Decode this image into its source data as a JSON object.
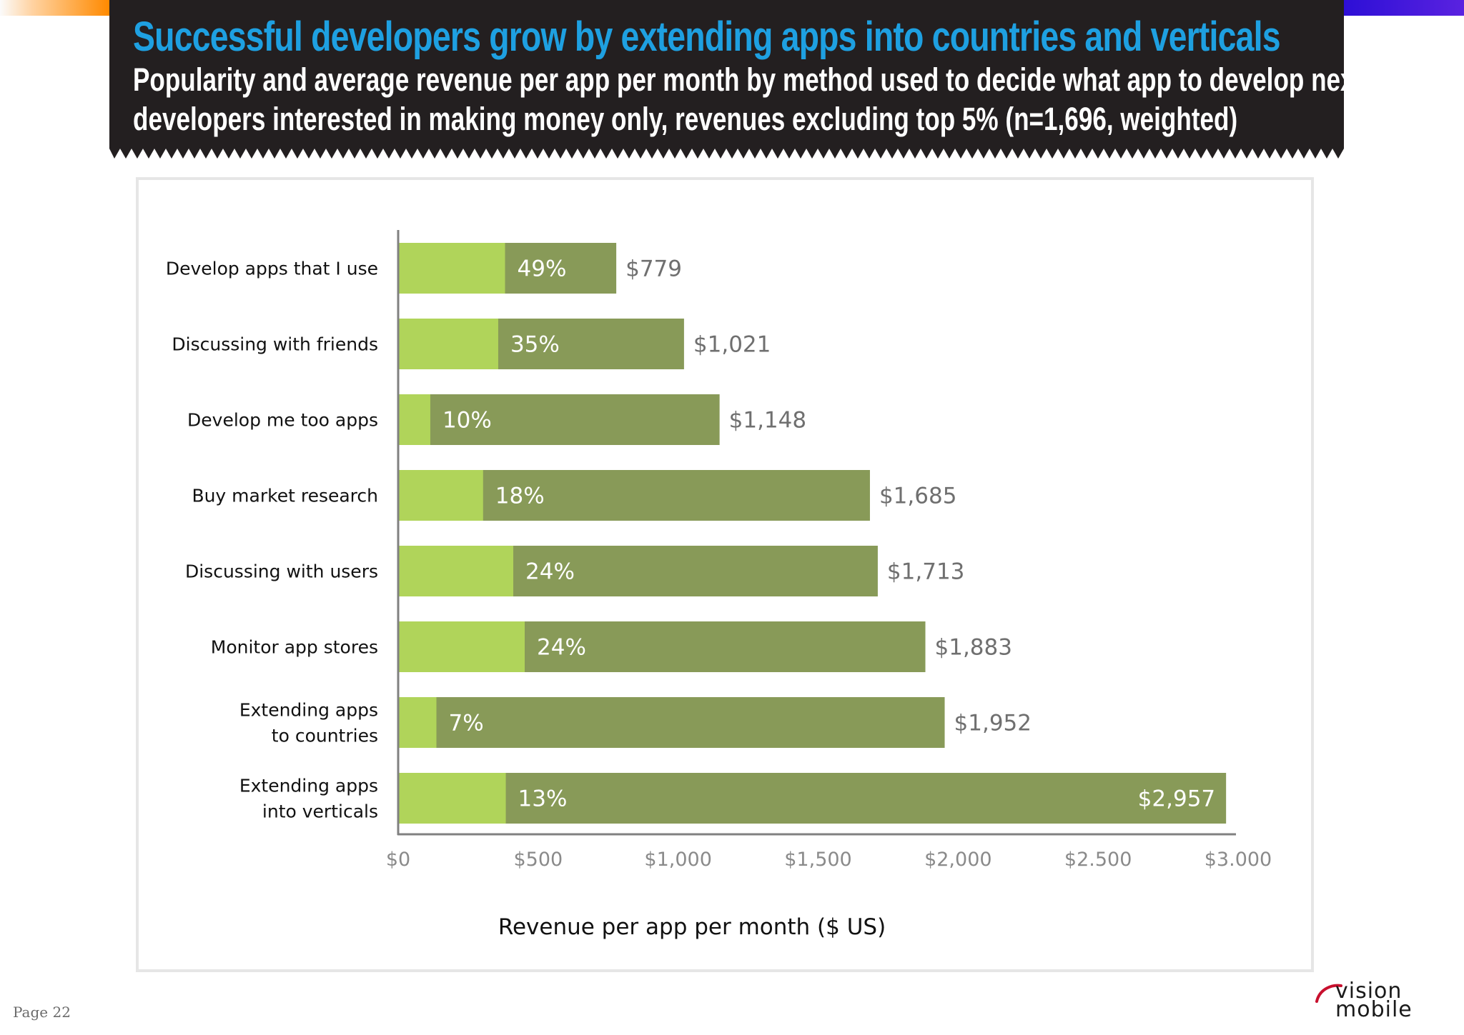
{
  "header": {
    "title": "Successful developers grow by extending apps into countries and verticals",
    "subtitle_line1": "Popularity and average revenue per app per month by method used to decide what app to develop next,",
    "subtitle_line2": "developers interested in making money only, revenues excluding top 5% (n=1,696, weighted)"
  },
  "colors": {
    "banner": "#231f20",
    "title": "#1ea0e1",
    "bar_popularity": "#b0d45a",
    "bar_revenue": "#889a58",
    "axis": "#808080",
    "tick_text": "#8a8a8a",
    "value_text": "#6f6f6f",
    "accent_left": "#ff8a00",
    "accent_right": "#3a14dc"
  },
  "chart_data": {
    "type": "bar",
    "orientation": "horizontal",
    "categories": [
      [
        "Develop apps that I use"
      ],
      [
        "Discussing with friends"
      ],
      [
        "Develop me too apps"
      ],
      [
        "Buy market research"
      ],
      [
        "Discussing with users"
      ],
      [
        "Monitor app stores"
      ],
      [
        "Extending apps",
        "to countries"
      ],
      [
        "Extending apps",
        "into verticals"
      ]
    ],
    "series": [
      {
        "values": [
          779,
          1021,
          1148,
          1685,
          1713,
          1883,
          1952,
          2957
        ]
      }
    ],
    "value_labels": [
      "$779",
      "$1,021",
      "$1,148",
      "$1,685",
      "$1,713",
      "$1,883",
      "$1,952",
      "$2,957"
    ],
    "popularity_pct": [
      49,
      35,
      10,
      18,
      24,
      24,
      7,
      13
    ],
    "popularity_labels": [
      "49%",
      "35%",
      "10%",
      "18%",
      "24%",
      "24%",
      "7%",
      "13%"
    ],
    "x_ticks": [
      0,
      500,
      1000,
      1500,
      2000,
      2500,
      3000
    ],
    "x_tick_labels": [
      "$0",
      "$500",
      "$1,000",
      "$1,500",
      "$2,000",
      "$2.500",
      "$3.000"
    ],
    "xlim": [
      0,
      3000
    ],
    "xlabel": "Revenue per app per month ($ US)",
    "ylabel": "",
    "grid": false,
    "legend": "none"
  },
  "footer": {
    "page_label": "Page 22",
    "logo_line1": "vision",
    "logo_line2": "mobile"
  }
}
